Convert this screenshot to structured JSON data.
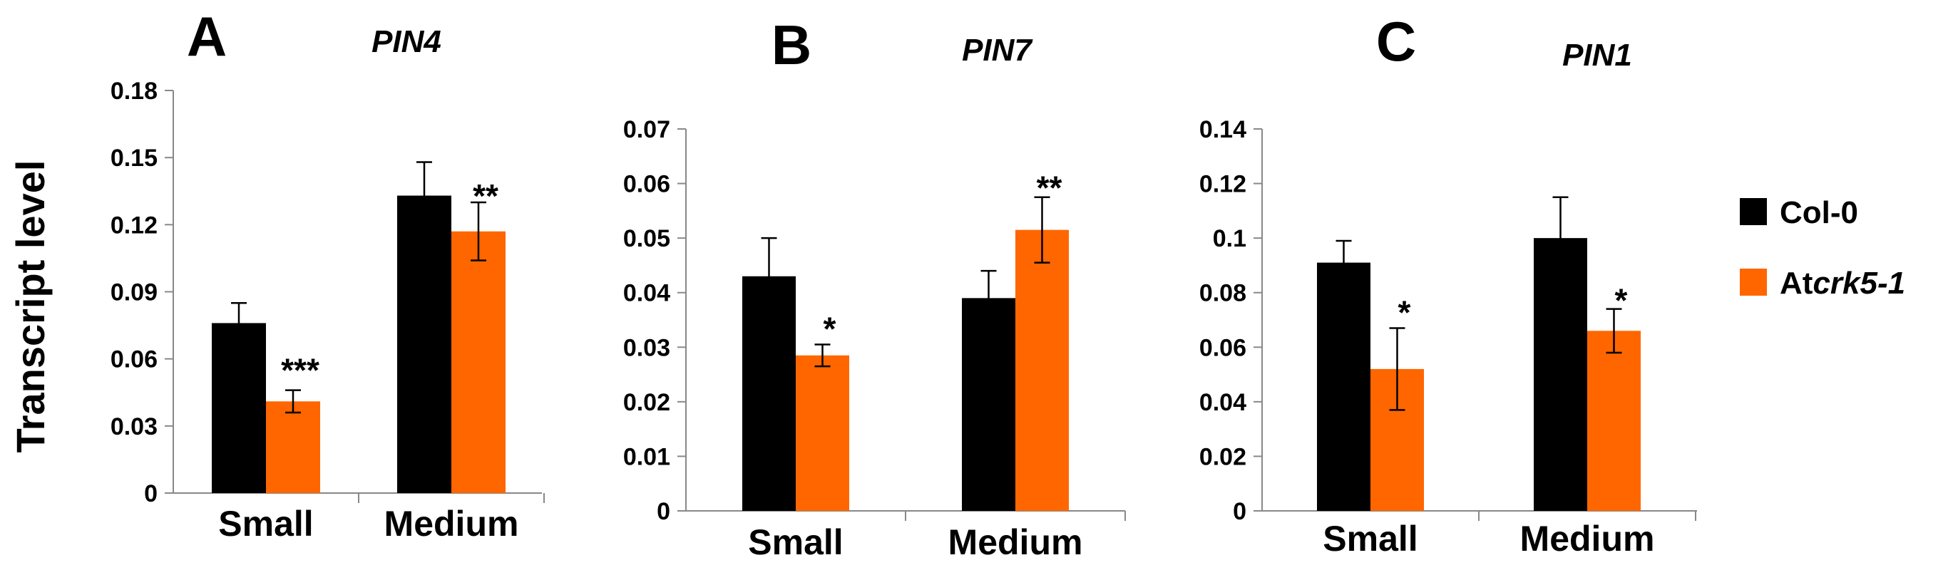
{
  "colors": {
    "col0": "#000000",
    "atcrk": "#ff6600",
    "axis": "#888888"
  },
  "ylabel": "Transcript level",
  "legend": [
    {
      "name": "Col-0",
      "prefix": "Col-0",
      "italic": "",
      "suffix": ""
    },
    {
      "name": "Atcrk5-1",
      "prefix": "At",
      "italic": "crk5-1",
      "suffix": ""
    }
  ],
  "chart_data": [
    {
      "type": "bar",
      "panel": "A",
      "title": "PIN4",
      "categories": [
        "Small",
        "Medium"
      ],
      "ylim": [
        0,
        0.18
      ],
      "yticks": [
        "0",
        "0.03",
        "0.06",
        "0.09",
        "0.12",
        "0.15",
        "0.18"
      ],
      "series": [
        {
          "name": "Col-0",
          "values": [
            0.076,
            0.133
          ],
          "errors": [
            0.009,
            0.015
          ]
        },
        {
          "name": "Atcrk5-1",
          "values": [
            0.041,
            0.117
          ],
          "errors": [
            0.005,
            0.013
          ]
        }
      ],
      "significance": [
        "***",
        "**"
      ]
    },
    {
      "type": "bar",
      "panel": "B",
      "title": "PIN7",
      "categories": [
        "Small",
        "Medium"
      ],
      "ylim": [
        0,
        0.07
      ],
      "yticks": [
        "0",
        "0.01",
        "0.02",
        "0.03",
        "0.04",
        "0.05",
        "0.06",
        "0.07"
      ],
      "series": [
        {
          "name": "Col-0",
          "values": [
            0.043,
            0.039
          ],
          "errors": [
            0.007,
            0.005
          ]
        },
        {
          "name": "Atcrk5-1",
          "values": [
            0.0285,
            0.0515
          ],
          "errors": [
            0.002,
            0.006
          ]
        }
      ],
      "significance": [
        "*",
        "**"
      ]
    },
    {
      "type": "bar",
      "panel": "C",
      "title": "PIN1",
      "categories": [
        "Small",
        "Medium"
      ],
      "ylim": [
        0,
        0.14
      ],
      "yticks": [
        "0",
        "0.02",
        "0.04",
        "0.06",
        "0.08",
        "0.1",
        "0.12",
        "0.14"
      ],
      "series": [
        {
          "name": "Col-0",
          "values": [
            0.091,
            0.1
          ],
          "errors": [
            0.008,
            0.015
          ]
        },
        {
          "name": "Atcrk5-1",
          "values": [
            0.052,
            0.066
          ],
          "errors": [
            0.015,
            0.008
          ]
        }
      ],
      "significance": [
        "*",
        "*"
      ]
    }
  ]
}
